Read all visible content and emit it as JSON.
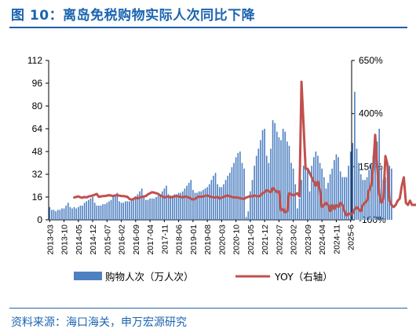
{
  "title": "图 10：离岛免税购物实际人次同比下降",
  "source": "资料来源：海口海关，申万宏源研究",
  "colors": {
    "title": "#1b64b0",
    "bars": "#4f81c2",
    "line": "#c0504d",
    "source": "#1b64b0"
  },
  "chart_data": {
    "type": "bar+line",
    "title": "",
    "x_tick_labels": [
      "2013-03",
      "2013-10",
      "2014-05",
      "2014-12",
      "2015-07",
      "2016-02",
      "2016-09",
      "2017-04",
      "2017-11",
      "2018-06",
      "2019-01",
      "2019-08",
      "2020-03",
      "2020-10",
      "2021-05",
      "2021-12",
      "2022-07",
      "2023-02",
      "2023-09",
      "2024-04",
      "2024-11",
      "2025-6"
    ],
    "left_axis": {
      "ticks": [
        0,
        16,
        32,
        48,
        64,
        80,
        96,
        112
      ],
      "ylim": [
        0,
        112
      ]
    },
    "right_axis": {
      "ticks": [
        "-100%",
        "150%",
        "400%",
        "650%"
      ],
      "ylim": [
        -100,
        650
      ]
    },
    "grid": false,
    "legend_position": "bottom",
    "series": [
      {
        "name": "购物人次（万人次）",
        "type": "bar",
        "axis": "left",
        "start": "2013-03",
        "frequency": "monthly",
        "values": [
          9,
          7,
          7,
          6,
          7,
          7,
          8,
          8,
          10,
          12,
          9,
          8,
          9,
          8,
          9,
          10,
          10,
          12,
          13,
          14,
          15,
          16,
          12,
          10,
          10,
          10,
          11,
          11,
          12,
          13,
          14,
          16,
          17,
          19,
          13,
          12,
          12,
          13,
          13,
          13,
          14,
          15,
          16,
          18,
          20,
          22,
          16,
          14,
          14,
          15,
          15,
          15,
          16,
          17,
          18,
          20,
          22,
          24,
          18,
          17,
          17,
          18,
          18,
          19,
          19,
          20,
          22,
          24,
          26,
          28,
          21,
          19,
          19,
          20,
          20,
          21,
          22,
          23,
          25,
          28,
          31,
          33,
          25,
          23,
          23,
          25,
          28,
          31,
          33,
          37,
          40,
          44,
          47,
          48,
          40,
          36,
          2,
          6,
          20,
          28,
          38,
          45,
          50,
          56,
          63,
          64,
          45,
          40,
          50,
          70,
          68,
          62,
          58,
          56,
          64,
          62,
          55,
          52,
          40,
          36,
          25,
          8,
          15,
          28,
          38,
          44,
          36,
          20,
          38,
          44,
          48,
          45,
          40,
          36,
          30,
          22,
          26,
          32,
          36,
          42,
          46,
          44,
          34,
          30,
          30,
          30,
          38,
          48,
          54,
          90,
          50,
          40,
          32,
          28,
          28,
          30,
          35,
          40,
          45,
          50,
          55,
          64,
          36,
          28,
          30,
          33,
          38,
          36
        ]
      },
      {
        "name": "YOY（右轴）",
        "type": "line",
        "axis": "right",
        "start": "2014-03",
        "frequency": "monthly",
        "values": [
          5,
          8,
          10,
          6,
          4,
          8,
          5,
          10,
          12,
          14,
          18,
          22,
          8,
          10,
          12,
          12,
          14,
          16,
          14,
          12,
          15,
          16,
          14,
          12,
          12,
          10,
          8,
          -2,
          -5,
          -2,
          5,
          0,
          5,
          8,
          10,
          12,
          20,
          25,
          30,
          28,
          25,
          22,
          15,
          10,
          5,
          8,
          10,
          5,
          8,
          10,
          12,
          10,
          8,
          5,
          10,
          8,
          5,
          0,
          -5,
          -2,
          5,
          10,
          8,
          10,
          12,
          15,
          10,
          8,
          6,
          5,
          8,
          0,
          5,
          8,
          12,
          15,
          10,
          8,
          5,
          6,
          4,
          2,
          0,
          -2,
          5,
          8,
          12,
          10,
          15,
          12,
          10,
          15,
          25,
          30,
          40,
          35,
          30,
          50,
          40,
          30,
          35,
          -55,
          -50,
          -65,
          -60,
          25,
          20,
          15,
          20,
          25,
          10,
          550,
          350,
          140,
          140,
          120,
          100,
          80,
          60,
          80,
          40,
          -40,
          -30,
          -20,
          -30,
          -60,
          -30,
          -50,
          -30,
          -40,
          -20,
          -30,
          -60,
          -80,
          -70,
          -75,
          -70,
          -50,
          -40,
          -50,
          -60,
          -30,
          -20,
          -10,
          40,
          60,
          140,
          300,
          150,
          20,
          -20,
          0,
          200,
          160,
          -10,
          -30,
          -40,
          -30,
          -10,
          0,
          60,
          100,
          -20,
          -30,
          -10,
          -30,
          -30,
          -30,
          -20,
          -25,
          -30,
          -30,
          -20,
          -25,
          -20,
          -20,
          -30,
          -20,
          -10
        ]
      }
    ]
  }
}
